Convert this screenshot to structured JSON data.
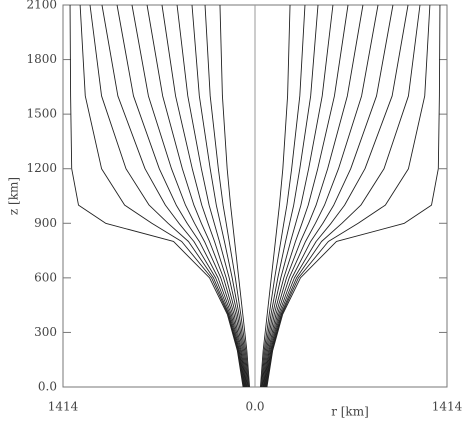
{
  "chart_data": {
    "type": "line",
    "xlabel": "r [km]",
    "ylabel": "z [km]",
    "color": "#222222",
    "xlim": [
      -1414,
      1414
    ],
    "ylim": [
      0,
      2100
    ],
    "xticks": [
      {
        "value": -1414,
        "label": "1414"
      },
      {
        "value": 0,
        "label": "0.0"
      },
      {
        "value": 1414,
        "label": "1414"
      }
    ],
    "yticks": [
      {
        "value": 0,
        "label": "0.0"
      },
      300,
      600,
      900,
      1200,
      1500,
      1800,
      2100
    ],
    "y": [
      0,
      200,
      400,
      600,
      800,
      900,
      1000,
      1200,
      1600,
      2100
    ],
    "series": [
      {
        "values": [
          40,
          60,
          90,
          120,
          150,
          165,
          180,
          205,
          240,
          258
        ]
      },
      {
        "values": [
          45,
          68,
          105,
          145,
          190,
          212,
          235,
          270,
          330,
          368
        ]
      },
      {
        "values": [
          50,
          76,
          118,
          168,
          225,
          255,
          285,
          330,
          410,
          464
        ]
      },
      {
        "values": [
          55,
          84,
          130,
          190,
          262,
          300,
          338,
          395,
          495,
          574
        ]
      },
      {
        "values": [
          60,
          92,
          142,
          212,
          298,
          346,
          392,
          462,
          585,
          685
        ]
      },
      {
        "values": [
          64,
          100,
          154,
          232,
          335,
          395,
          450,
          535,
          680,
          795
        ]
      },
      {
        "values": [
          68,
          107,
          165,
          252,
          372,
          445,
          512,
          615,
          785,
          906
        ]
      },
      {
        "values": [
          72,
          114,
          175,
          272,
          410,
          500,
          580,
          705,
          895,
          1016
        ]
      },
      {
        "values": [
          76,
          120,
          184,
          290,
          450,
          560,
          660,
          810,
          1010,
          1127
        ]
      },
      {
        "values": [
          80,
          125,
          192,
          306,
          490,
          640,
          780,
          950,
          1130,
          1215
        ]
      },
      {
        "values": [
          84,
          128,
          198,
          320,
          540,
          760,
          960,
          1130,
          1250,
          1288
        ]
      },
      {
        "values": [
          88,
          130,
          204,
          335,
          600,
          1100,
          1300,
          1350,
          1358,
          1362
        ]
      },
      {
        "values": [
          -40,
          -60,
          -90,
          -120,
          -150,
          -165,
          -180,
          -205,
          -240,
          -258
        ]
      },
      {
        "values": [
          -45,
          -68,
          -105,
          -145,
          -190,
          -212,
          -235,
          -270,
          -330,
          -368
        ]
      },
      {
        "values": [
          -50,
          -76,
          -118,
          -168,
          -225,
          -255,
          -285,
          -330,
          -410,
          -464
        ]
      },
      {
        "values": [
          -55,
          -84,
          -130,
          -190,
          -262,
          -300,
          -338,
          -395,
          -495,
          -574
        ]
      },
      {
        "values": [
          -60,
          -92,
          -142,
          -212,
          -298,
          -346,
          -392,
          -462,
          -585,
          -685
        ]
      },
      {
        "values": [
          -64,
          -100,
          -154,
          -232,
          -335,
          -395,
          -450,
          -535,
          -680,
          -795
        ]
      },
      {
        "values": [
          -68,
          -107,
          -165,
          -252,
          -372,
          -445,
          -512,
          -615,
          -785,
          -906
        ]
      },
      {
        "values": [
          -72,
          -114,
          -175,
          -272,
          -410,
          -500,
          -580,
          -705,
          -895,
          -1016
        ]
      },
      {
        "values": [
          -76,
          -120,
          -184,
          -290,
          -450,
          -560,
          -660,
          -810,
          -1010,
          -1127
        ]
      },
      {
        "values": [
          -80,
          -125,
          -192,
          -306,
          -490,
          -640,
          -780,
          -950,
          -1130,
          -1215
        ]
      },
      {
        "values": [
          -84,
          -128,
          -198,
          -320,
          -540,
          -760,
          -960,
          -1130,
          -1250,
          -1288
        ]
      },
      {
        "values": [
          -88,
          -130,
          -204,
          -335,
          -600,
          -1100,
          -1300,
          -1350,
          -1358,
          -1362
        ]
      }
    ]
  }
}
